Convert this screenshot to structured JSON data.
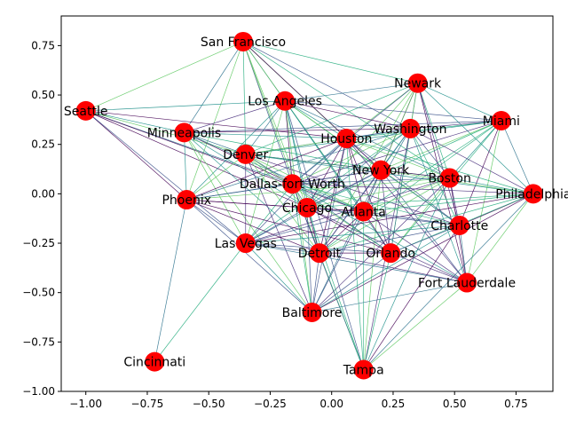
{
  "chart_data": {
    "type": "scatter",
    "title": "",
    "xlabel": "",
    "ylabel": "",
    "xlim": [
      -1.1,
      0.9
    ],
    "ylim": [
      -1.0,
      0.9
    ],
    "xticks": [
      -1.0,
      -0.75,
      -0.5,
      -0.25,
      0.0,
      0.25,
      0.5,
      0.75
    ],
    "xtick_labels": [
      "−1.00",
      "−0.75",
      "−0.50",
      "−0.25",
      "0.00",
      "0.25",
      "0.50",
      "0.75"
    ],
    "yticks": [
      -1.0,
      -0.75,
      -0.5,
      -0.25,
      0.0,
      0.25,
      0.5,
      0.75
    ],
    "ytick_labels": [
      "−1.00",
      "−0.75",
      "−0.50",
      "−0.25",
      "0.00",
      "0.25",
      "0.50",
      "0.75"
    ],
    "grid": false,
    "node_color": "#ff0000",
    "edge_colors": [
      "#440154",
      "#472d7b",
      "#3b528b",
      "#2c728e",
      "#21918c",
      "#28ae80",
      "#5ec962"
    ],
    "nodes": [
      {
        "label": "San Francisco",
        "x": -0.36,
        "y": 0.77
      },
      {
        "label": "Newark",
        "x": 0.35,
        "y": 0.56
      },
      {
        "label": "Seattle",
        "x": -1.0,
        "y": 0.42
      },
      {
        "label": "Los Angeles",
        "x": -0.19,
        "y": 0.47
      },
      {
        "label": "Miami",
        "x": 0.69,
        "y": 0.37
      },
      {
        "label": "Minneapolis",
        "x": -0.6,
        "y": 0.31
      },
      {
        "label": "Washington",
        "x": 0.32,
        "y": 0.33
      },
      {
        "label": "Houston",
        "x": 0.06,
        "y": 0.28
      },
      {
        "label": "Denver",
        "x": -0.35,
        "y": 0.2
      },
      {
        "label": "New York",
        "x": 0.2,
        "y": 0.12
      },
      {
        "label": "Boston",
        "x": 0.48,
        "y": 0.08
      },
      {
        "label": "Dallas-fort Worth",
        "x": -0.16,
        "y": 0.05
      },
      {
        "label": "Philadelphia",
        "x": 0.82,
        "y": 0.0
      },
      {
        "label": "Phoenix",
        "x": -0.59,
        "y": -0.03
      },
      {
        "label": "Chicago",
        "x": -0.1,
        "y": -0.07
      },
      {
        "label": "Atlanta",
        "x": 0.13,
        "y": -0.09
      },
      {
        "label": "Charlotte",
        "x": 0.52,
        "y": -0.16
      },
      {
        "label": "Las Vegas",
        "x": -0.35,
        "y": -0.25
      },
      {
        "label": "Detroit",
        "x": -0.05,
        "y": -0.3
      },
      {
        "label": "Orlando",
        "x": 0.24,
        "y": -0.3
      },
      {
        "label": "Fort Lauderdale",
        "x": 0.55,
        "y": -0.45
      },
      {
        "label": "Baltimore",
        "x": -0.08,
        "y": -0.6
      },
      {
        "label": "Cincinnati",
        "x": -0.72,
        "y": -0.85
      },
      {
        "label": "Tampa",
        "x": 0.13,
        "y": -0.89
      }
    ],
    "edges": [
      [
        "San Francisco",
        "Seattle"
      ],
      [
        "San Francisco",
        "Los Angeles"
      ],
      [
        "San Francisco",
        "Minneapolis"
      ],
      [
        "San Francisco",
        "Houston"
      ],
      [
        "San Francisco",
        "Denver"
      ],
      [
        "San Francisco",
        "Newark"
      ],
      [
        "San Francisco",
        "Washington"
      ],
      [
        "San Francisco",
        "New York"
      ],
      [
        "San Francisco",
        "Dallas-fort Worth"
      ],
      [
        "San Francisco",
        "Chicago"
      ],
      [
        "San Francisco",
        "Atlanta"
      ],
      [
        "San Francisco",
        "Phoenix"
      ],
      [
        "San Francisco",
        "Boston"
      ],
      [
        "San Francisco",
        "Detroit"
      ],
      [
        "Seattle",
        "Los Angeles"
      ],
      [
        "Seattle",
        "Minneapolis"
      ],
      [
        "Seattle",
        "Denver"
      ],
      [
        "Seattle",
        "Houston"
      ],
      [
        "Seattle",
        "Dallas-fort Worth"
      ],
      [
        "Seattle",
        "Phoenix"
      ],
      [
        "Seattle",
        "Chicago"
      ],
      [
        "Seattle",
        "Las Vegas"
      ],
      [
        "Seattle",
        "Atlanta"
      ],
      [
        "Newark",
        "Los Angeles"
      ],
      [
        "Newark",
        "Miami"
      ],
      [
        "Newark",
        "Washington"
      ],
      [
        "Newark",
        "Houston"
      ],
      [
        "Newark",
        "New York"
      ],
      [
        "Newark",
        "Boston"
      ],
      [
        "Newark",
        "Philadelphia"
      ],
      [
        "Newark",
        "Charlotte"
      ],
      [
        "Newark",
        "Atlanta"
      ],
      [
        "Newark",
        "Chicago"
      ],
      [
        "Newark",
        "Orlando"
      ],
      [
        "Newark",
        "Denver"
      ],
      [
        "Newark",
        "Detroit"
      ],
      [
        "Newark",
        "Dallas-fort Worth"
      ],
      [
        "Newark",
        "Fort Lauderdale"
      ],
      [
        "Los Angeles",
        "Miami"
      ],
      [
        "Los Angeles",
        "Houston"
      ],
      [
        "Los Angeles",
        "Washington"
      ],
      [
        "Los Angeles",
        "Denver"
      ],
      [
        "Los Angeles",
        "Dallas-fort Worth"
      ],
      [
        "Los Angeles",
        "Chicago"
      ],
      [
        "Los Angeles",
        "Atlanta"
      ],
      [
        "Los Angeles",
        "New York"
      ],
      [
        "Los Angeles",
        "Boston"
      ],
      [
        "Los Angeles",
        "Phoenix"
      ],
      [
        "Los Angeles",
        "Las Vegas"
      ],
      [
        "Los Angeles",
        "Detroit"
      ],
      [
        "Los Angeles",
        "Orlando"
      ],
      [
        "Los Angeles",
        "Charlotte"
      ],
      [
        "Los Angeles",
        "Baltimore"
      ],
      [
        "Los Angeles",
        "Minneapolis"
      ],
      [
        "Los Angeles",
        "Tampa"
      ],
      [
        "Miami",
        "Washington"
      ],
      [
        "Miami",
        "Houston"
      ],
      [
        "Miami",
        "New York"
      ],
      [
        "Miami",
        "Boston"
      ],
      [
        "Miami",
        "Philadelphia"
      ],
      [
        "Miami",
        "Atlanta"
      ],
      [
        "Miami",
        "Chicago"
      ],
      [
        "Miami",
        "Charlotte"
      ],
      [
        "Miami",
        "Orlando"
      ],
      [
        "Miami",
        "Dallas-fort Worth"
      ],
      [
        "Miami",
        "Detroit"
      ],
      [
        "Miami",
        "Denver"
      ],
      [
        "Miami",
        "Fort Lauderdale"
      ],
      [
        "Miami",
        "Minneapolis"
      ],
      [
        "Minneapolis",
        "Denver"
      ],
      [
        "Minneapolis",
        "Houston"
      ],
      [
        "Minneapolis",
        "Chicago"
      ],
      [
        "Minneapolis",
        "Dallas-fort Worth"
      ],
      [
        "Minneapolis",
        "Phoenix"
      ],
      [
        "Minneapolis",
        "Atlanta"
      ],
      [
        "Minneapolis",
        "New York"
      ],
      [
        "Minneapolis",
        "Detroit"
      ],
      [
        "Minneapolis",
        "Las Vegas"
      ],
      [
        "Minneapolis",
        "Washington"
      ],
      [
        "Minneapolis",
        "Baltimore"
      ],
      [
        "Washington",
        "Houston"
      ],
      [
        "Washington",
        "New York"
      ],
      [
        "Washington",
        "Boston"
      ],
      [
        "Washington",
        "Chicago"
      ],
      [
        "Washington",
        "Atlanta"
      ],
      [
        "Washington",
        "Dallas-fort Worth"
      ],
      [
        "Washington",
        "Denver"
      ],
      [
        "Washington",
        "Detroit"
      ],
      [
        "Washington",
        "Orlando"
      ],
      [
        "Washington",
        "Charlotte"
      ],
      [
        "Washington",
        "Philadelphia"
      ],
      [
        "Washington",
        "Fort Lauderdale"
      ],
      [
        "Washington",
        "Las Vegas"
      ],
      [
        "Washington",
        "Phoenix"
      ],
      [
        "Washington",
        "Tampa"
      ],
      [
        "Houston",
        "Denver"
      ],
      [
        "Houston",
        "New York"
      ],
      [
        "Houston",
        "Boston"
      ],
      [
        "Houston",
        "Dallas-fort Worth"
      ],
      [
        "Houston",
        "Chicago"
      ],
      [
        "Houston",
        "Atlanta"
      ],
      [
        "Houston",
        "Phoenix"
      ],
      [
        "Houston",
        "Las Vegas"
      ],
      [
        "Houston",
        "Detroit"
      ],
      [
        "Houston",
        "Orlando"
      ],
      [
        "Houston",
        "Charlotte"
      ],
      [
        "Houston",
        "Philadelphia"
      ],
      [
        "Houston",
        "Fort Lauderdale"
      ],
      [
        "Houston",
        "Baltimore"
      ],
      [
        "Houston",
        "Tampa"
      ],
      [
        "Denver",
        "New York"
      ],
      [
        "Denver",
        "Dallas-fort Worth"
      ],
      [
        "Denver",
        "Chicago"
      ],
      [
        "Denver",
        "Atlanta"
      ],
      [
        "Denver",
        "Phoenix"
      ],
      [
        "Denver",
        "Las Vegas"
      ],
      [
        "Denver",
        "Detroit"
      ],
      [
        "Denver",
        "Orlando"
      ],
      [
        "Denver",
        "Boston"
      ],
      [
        "Denver",
        "Charlotte"
      ],
      [
        "Denver",
        "Baltimore"
      ],
      [
        "Denver",
        "Philadelphia"
      ],
      [
        "New York",
        "Boston"
      ],
      [
        "New York",
        "Dallas-fort Worth"
      ],
      [
        "New York",
        "Chicago"
      ],
      [
        "New York",
        "Atlanta"
      ],
      [
        "New York",
        "Charlotte"
      ],
      [
        "New York",
        "Detroit"
      ],
      [
        "New York",
        "Orlando"
      ],
      [
        "New York",
        "Philadelphia"
      ],
      [
        "New York",
        "Fort Lauderdale"
      ],
      [
        "New York",
        "Phoenix"
      ],
      [
        "New York",
        "Las Vegas"
      ],
      [
        "New York",
        "Baltimore"
      ],
      [
        "New York",
        "Tampa"
      ],
      [
        "Boston",
        "Dallas-fort Worth"
      ],
      [
        "Boston",
        "Chicago"
      ],
      [
        "Boston",
        "Atlanta"
      ],
      [
        "Boston",
        "Philadelphia"
      ],
      [
        "Boston",
        "Charlotte"
      ],
      [
        "Boston",
        "Detroit"
      ],
      [
        "Boston",
        "Orlando"
      ],
      [
        "Boston",
        "Fort Lauderdale"
      ],
      [
        "Boston",
        "Baltimore"
      ],
      [
        "Boston",
        "Tampa"
      ],
      [
        "Boston",
        "Phoenix"
      ],
      [
        "Boston",
        "Las Vegas"
      ],
      [
        "Dallas-fort Worth",
        "Chicago"
      ],
      [
        "Dallas-fort Worth",
        "Atlanta"
      ],
      [
        "Dallas-fort Worth",
        "Phoenix"
      ],
      [
        "Dallas-fort Worth",
        "Las Vegas"
      ],
      [
        "Dallas-fort Worth",
        "Detroit"
      ],
      [
        "Dallas-fort Worth",
        "Orlando"
      ],
      [
        "Dallas-fort Worth",
        "Charlotte"
      ],
      [
        "Dallas-fort Worth",
        "Philadelphia"
      ],
      [
        "Dallas-fort Worth",
        "Fort Lauderdale"
      ],
      [
        "Dallas-fort Worth",
        "Baltimore"
      ],
      [
        "Dallas-fort Worth",
        "Tampa"
      ],
      [
        "Philadelphia",
        "Charlotte"
      ],
      [
        "Philadelphia",
        "Atlanta"
      ],
      [
        "Philadelphia",
        "Chicago"
      ],
      [
        "Philadelphia",
        "Orlando"
      ],
      [
        "Philadelphia",
        "Fort Lauderdale"
      ],
      [
        "Philadelphia",
        "Detroit"
      ],
      [
        "Philadelphia",
        "Las Vegas"
      ],
      [
        "Philadelphia",
        "Tampa"
      ],
      [
        "Philadelphia",
        "Baltimore"
      ],
      [
        "Phoenix",
        "Chicago"
      ],
      [
        "Phoenix",
        "Atlanta"
      ],
      [
        "Phoenix",
        "Las Vegas"
      ],
      [
        "Phoenix",
        "Detroit"
      ],
      [
        "Phoenix",
        "Baltimore"
      ],
      [
        "Phoenix",
        "Cincinnati"
      ],
      [
        "Phoenix",
        "Orlando"
      ],
      [
        "Chicago",
        "Atlanta"
      ],
      [
        "Chicago",
        "Las Vegas"
      ],
      [
        "Chicago",
        "Detroit"
      ],
      [
        "Chicago",
        "Orlando"
      ],
      [
        "Chicago",
        "Charlotte"
      ],
      [
        "Chicago",
        "Fort Lauderdale"
      ],
      [
        "Chicago",
        "Baltimore"
      ],
      [
        "Chicago",
        "Tampa"
      ],
      [
        "Atlanta",
        "Charlotte"
      ],
      [
        "Atlanta",
        "Las Vegas"
      ],
      [
        "Atlanta",
        "Detroit"
      ],
      [
        "Atlanta",
        "Orlando"
      ],
      [
        "Atlanta",
        "Fort Lauderdale"
      ],
      [
        "Atlanta",
        "Baltimore"
      ],
      [
        "Atlanta",
        "Tampa"
      ],
      [
        "Charlotte",
        "Detroit"
      ],
      [
        "Charlotte",
        "Orlando"
      ],
      [
        "Charlotte",
        "Fort Lauderdale"
      ],
      [
        "Charlotte",
        "Baltimore"
      ],
      [
        "Charlotte",
        "Las Vegas"
      ],
      [
        "Charlotte",
        "Tampa"
      ],
      [
        "Las Vegas",
        "Detroit"
      ],
      [
        "Las Vegas",
        "Orlando"
      ],
      [
        "Las Vegas",
        "Baltimore"
      ],
      [
        "Las Vegas",
        "Cincinnati"
      ],
      [
        "Las Vegas",
        "Fort Lauderdale"
      ],
      [
        "Detroit",
        "Orlando"
      ],
      [
        "Detroit",
        "Fort Lauderdale"
      ],
      [
        "Detroit",
        "Baltimore"
      ],
      [
        "Detroit",
        "Tampa"
      ],
      [
        "Orlando",
        "Fort Lauderdale"
      ],
      [
        "Orlando",
        "Baltimore"
      ],
      [
        "Orlando",
        "Tampa"
      ],
      [
        "Fort Lauderdale",
        "Baltimore"
      ],
      [
        "Fort Lauderdale",
        "Tampa"
      ]
    ]
  }
}
